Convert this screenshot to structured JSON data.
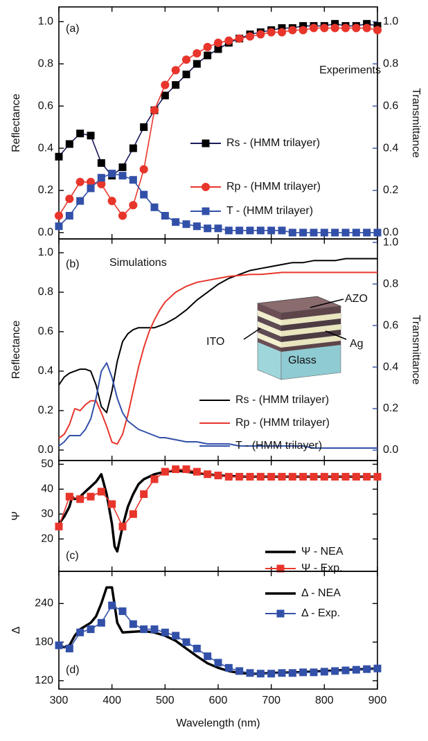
{
  "chart_data": [
    {
      "type": "line",
      "annotations": [
        "(a)",
        "Experiments"
      ],
      "ylabel": "Reflectance",
      "y2label": "Transmittance",
      "y2color": "#3250a8",
      "xlim": [
        300,
        900
      ],
      "xticks": [
        300,
        400,
        500,
        600,
        700,
        800,
        900
      ],
      "ylim": [
        -0.03,
        1.07
      ],
      "yticks": [
        {
          "value": 0,
          "label": "0.0"
        },
        0.2,
        0.4,
        0.6,
        0.8,
        {
          "value": 1,
          "label": "1.0"
        }
      ],
      "y2lim": [
        -0.03,
        1.07
      ],
      "y2ticks": [
        {
          "value": 0,
          "label": "0.0"
        },
        0.2,
        0.4,
        0.6,
        0.8,
        {
          "value": 1,
          "label": "1.0"
        }
      ],
      "x": [
        300,
        320,
        340,
        360,
        380,
        400,
        420,
        440,
        460,
        480,
        500,
        520,
        540,
        560,
        580,
        600,
        620,
        640,
        660,
        680,
        700,
        720,
        740,
        760,
        780,
        800,
        820,
        840,
        860,
        880,
        900
      ],
      "series": [
        {
          "name": "Rs - (HMM trilayer)",
          "color": "#000000",
          "line_color": "#1a1a5c",
          "marker": "square",
          "values": [
            0.36,
            0.42,
            0.47,
            0.46,
            0.33,
            0.27,
            0.31,
            0.4,
            0.5,
            0.58,
            0.65,
            0.7,
            0.75,
            0.8,
            0.84,
            0.87,
            0.9,
            0.92,
            0.94,
            0.95,
            0.96,
            0.97,
            0.97,
            0.98,
            0.98,
            0.98,
            0.99,
            0.98,
            0.98,
            0.99,
            0.98
          ]
        },
        {
          "name": "Rp - (HMM trilayer)",
          "color": "#e8352b",
          "marker": "circle",
          "values": [
            0.08,
            0.16,
            0.24,
            0.24,
            0.23,
            0.15,
            0.08,
            0.13,
            0.3,
            0.58,
            0.7,
            0.77,
            0.82,
            0.85,
            0.88,
            0.9,
            0.91,
            0.92,
            0.93,
            0.94,
            0.95,
            0.95,
            0.96,
            0.96,
            0.97,
            0.97,
            0.97,
            0.97,
            0.97,
            0.97,
            0.96
          ]
        },
        {
          "name": "T - (HMM trilayer)",
          "color": "#3250a8",
          "marker": "square",
          "axis": "y2",
          "values": [
            0.03,
            0.08,
            0.15,
            0.21,
            0.26,
            0.28,
            0.27,
            0.25,
            0.18,
            0.12,
            0.08,
            0.05,
            0.04,
            0.03,
            0.02,
            0.02,
            0.01,
            0.01,
            0.01,
            0.01,
            0.01,
            0.01,
            0.0,
            0.0,
            0.0,
            0.0,
            0.0,
            0.0,
            0.0,
            0.0,
            0.0
          ]
        }
      ]
    },
    {
      "type": "line",
      "annotations": [
        "(b)",
        "Simulations"
      ],
      "inset_labels": [
        "AZO",
        "ITO",
        "Ag",
        "Glass"
      ],
      "ylabel": "Reflectance",
      "y2label": "Transmittance",
      "y2color": "#3250a8",
      "xlim": [
        300,
        900
      ],
      "xticks": [
        300,
        400,
        500,
        600,
        700,
        800,
        900
      ],
      "ylim": [
        -0.053,
        1.07
      ],
      "yticks": [
        {
          "value": 0,
          "label": "0.0"
        },
        0.2,
        0.4,
        0.6,
        0.8,
        {
          "value": 1,
          "label": "1.0"
        }
      ],
      "y2lim": [
        -0.05,
        1.017
      ],
      "y2ticks": [
        {
          "value": 0,
          "label": "0.0"
        },
        0.2,
        0.4,
        0.6,
        0.8,
        {
          "value": 1,
          "label": "1.0"
        }
      ],
      "x": [
        300,
        310,
        320,
        330,
        340,
        350,
        360,
        370,
        380,
        390,
        400,
        410,
        420,
        430,
        440,
        450,
        460,
        470,
        480,
        490,
        500,
        520,
        540,
        560,
        580,
        600,
        620,
        640,
        660,
        680,
        700,
        720,
        740,
        760,
        780,
        800,
        820,
        840,
        860,
        880,
        900
      ],
      "series": [
        {
          "name": "Rs - (HMM trilayer)",
          "color": "#000000",
          "values": [
            0.33,
            0.37,
            0.39,
            0.4,
            0.41,
            0.41,
            0.4,
            0.33,
            0.22,
            0.19,
            0.3,
            0.45,
            0.55,
            0.59,
            0.61,
            0.62,
            0.62,
            0.62,
            0.62,
            0.63,
            0.64,
            0.67,
            0.71,
            0.76,
            0.8,
            0.84,
            0.87,
            0.89,
            0.91,
            0.92,
            0.93,
            0.94,
            0.95,
            0.95,
            0.96,
            0.96,
            0.96,
            0.97,
            0.97,
            0.97,
            0.97
          ]
        },
        {
          "name": "Rp - (HMM trilayer)",
          "color": "#e8352b",
          "values": [
            0.06,
            0.08,
            0.13,
            0.21,
            0.2,
            0.23,
            0.25,
            0.25,
            0.19,
            0.12,
            0.04,
            0.03,
            0.08,
            0.18,
            0.3,
            0.42,
            0.52,
            0.6,
            0.66,
            0.71,
            0.75,
            0.8,
            0.83,
            0.85,
            0.86,
            0.87,
            0.88,
            0.885,
            0.89,
            0.89,
            0.895,
            0.9,
            0.9,
            0.9,
            0.9,
            0.9,
            0.9,
            0.9,
            0.9,
            0.9,
            0.9
          ]
        },
        {
          "name": "T  - (HMM trilayer)",
          "color": "#3250a8",
          "axis": "y2",
          "values": [
            0.02,
            0.04,
            0.07,
            0.07,
            0.07,
            0.1,
            0.15,
            0.25,
            0.38,
            0.42,
            0.35,
            0.25,
            0.18,
            0.14,
            0.12,
            0.1,
            0.09,
            0.08,
            0.07,
            0.06,
            0.06,
            0.05,
            0.04,
            0.04,
            0.03,
            0.03,
            0.03,
            0.02,
            0.02,
            0.02,
            0.02,
            0.02,
            0.02,
            0.02,
            0.01,
            0.01,
            0.01,
            0.01,
            0.01,
            0.01,
            0.01
          ]
        }
      ]
    },
    {
      "type": "line",
      "annotations": [
        "(c)"
      ],
      "ylabel": "Ψ",
      "xlim": [
        300,
        900
      ],
      "xticks": [
        300,
        400,
        500,
        600,
        700,
        800,
        900
      ],
      "ylim": [
        7,
        51.5
      ],
      "yticks": [
        20,
        30,
        40,
        50
      ],
      "series": [
        {
          "name": "Ψ - NEA",
          "color": "#000000",
          "width": 3.5,
          "x": [
            300,
            310,
            320,
            325,
            330,
            340,
            350,
            360,
            370,
            380,
            390,
            400,
            405,
            410,
            420,
            430,
            440,
            450,
            460,
            480,
            500,
            520,
            540,
            560,
            580,
            600,
            650,
            700,
            800,
            900
          ],
          "values": [
            26,
            29,
            33,
            37,
            36,
            37,
            39,
            41,
            43,
            46,
            38,
            26,
            17,
            15,
            25,
            33,
            38,
            42,
            44,
            46,
            47,
            47.5,
            47,
            46.5,
            46,
            45.5,
            45,
            45,
            45,
            45
          ]
        },
        {
          "name": "Ψ - Exp.",
          "color": "#e8352b",
          "marker": "square",
          "x": [
            300,
            320,
            340,
            360,
            380,
            400,
            420,
            440,
            460,
            480,
            500,
            520,
            540,
            560,
            580,
            600,
            620,
            640,
            660,
            680,
            700,
            720,
            740,
            760,
            780,
            800,
            820,
            840,
            860,
            880,
            900
          ],
          "values": [
            25,
            37,
            36,
            37,
            39,
            34,
            25,
            30,
            38,
            44,
            47,
            48,
            48,
            47,
            46,
            45.5,
            45,
            45,
            45,
            45,
            45,
            45,
            45,
            45,
            45,
            45,
            45,
            45,
            45,
            45,
            45
          ]
        }
      ]
    },
    {
      "type": "line",
      "annotations": [
        "(d)"
      ],
      "ylabel": "Δ",
      "xlabel": "Wavelength (nm)",
      "xlim": [
        300,
        900
      ],
      "xticks": [
        300,
        400,
        500,
        600,
        700,
        800,
        900
      ],
      "ylim": [
        107,
        290
      ],
      "yticks": [
        120,
        180,
        240
      ],
      "series": [
        {
          "name": "Δ - NEA",
          "color": "#000000",
          "width": 3.5,
          "x": [
            300,
            310,
            320,
            330,
            340,
            350,
            360,
            370,
            380,
            390,
            400,
            410,
            420,
            440,
            460,
            480,
            500,
            520,
            540,
            560,
            580,
            600,
            620,
            640,
            660,
            680,
            700,
            750,
            800,
            850,
            900
          ],
          "values": [
            175,
            172,
            175,
            190,
            200,
            205,
            210,
            220,
            240,
            265,
            265,
            210,
            195,
            196,
            197,
            195,
            190,
            182,
            170,
            158,
            147,
            140,
            135,
            132,
            131,
            131,
            132,
            133,
            135,
            137,
            139
          ]
        },
        {
          "name": "Δ - Exp.",
          "color": "#3250a8",
          "marker": "square",
          "x": [
            300,
            320,
            340,
            360,
            380,
            400,
            420,
            440,
            460,
            480,
            500,
            520,
            540,
            560,
            580,
            600,
            620,
            640,
            660,
            680,
            700,
            720,
            740,
            760,
            780,
            800,
            820,
            840,
            860,
            880,
            900
          ],
          "values": [
            175,
            170,
            195,
            200,
            210,
            237,
            228,
            208,
            200,
            200,
            195,
            190,
            180,
            170,
            158,
            148,
            140,
            135,
            132,
            131,
            131,
            132,
            132,
            133,
            133,
            134,
            135,
            136,
            137,
            138,
            139
          ]
        }
      ]
    }
  ]
}
